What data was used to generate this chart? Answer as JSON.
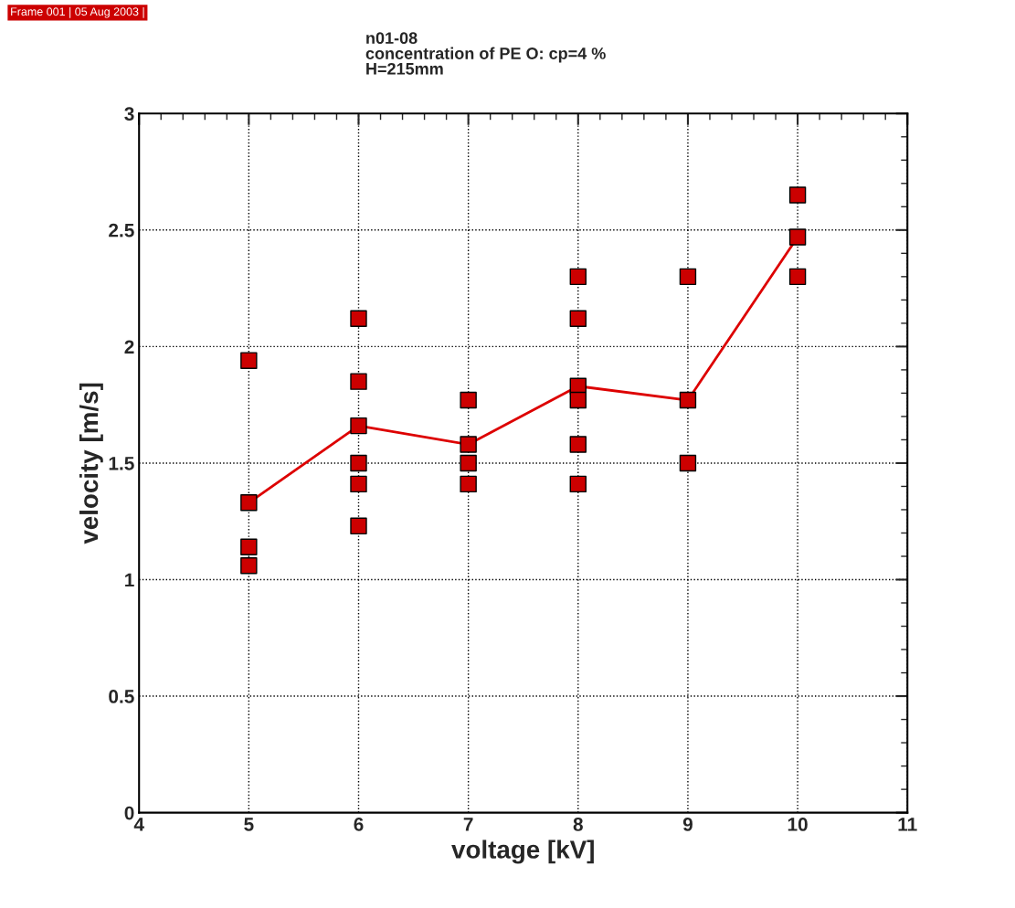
{
  "chart_data": {
    "type": "scatter",
    "title": "n01-08\nconcentration of PE O: cp=4 %\nH=215mm",
    "xlabel": "voltage [kV]",
    "ylabel": "velocity [m/s]",
    "annotations": [
      "Frame 001 | 05 Aug 2003 |"
    ],
    "series": [
      {
        "color": "#cc0000",
        "marker": "square",
        "x": [
          5,
          5,
          5,
          5,
          6,
          6,
          6,
          6,
          6,
          6,
          7,
          7,
          7,
          7,
          8,
          8,
          8,
          8,
          8,
          8,
          9,
          9,
          9,
          10,
          10,
          10
        ],
        "values": [
          1.94,
          1.33,
          1.14,
          1.06,
          2.12,
          1.85,
          1.66,
          1.5,
          1.41,
          1.23,
          1.77,
          1.58,
          1.5,
          1.41,
          2.3,
          2.12,
          1.83,
          1.77,
          1.58,
          1.41,
          2.3,
          1.77,
          1.5,
          2.65,
          2.47,
          2.3
        ]
      },
      {
        "type": "line",
        "color": "#dd0000",
        "x": [
          5,
          6,
          7,
          8,
          9,
          10
        ],
        "values": [
          1.33,
          1.66,
          1.58,
          1.83,
          1.77,
          2.47
        ]
      }
    ],
    "xlim": [
      4,
      11
    ],
    "xticks": [
      4,
      5,
      6,
      7,
      8,
      9,
      10,
      11
    ],
    "ylim": [
      0,
      3
    ],
    "yticks": [
      0,
      0.5,
      1,
      1.5,
      2,
      2.5,
      3
    ],
    "grid": true,
    "legend": false
  }
}
